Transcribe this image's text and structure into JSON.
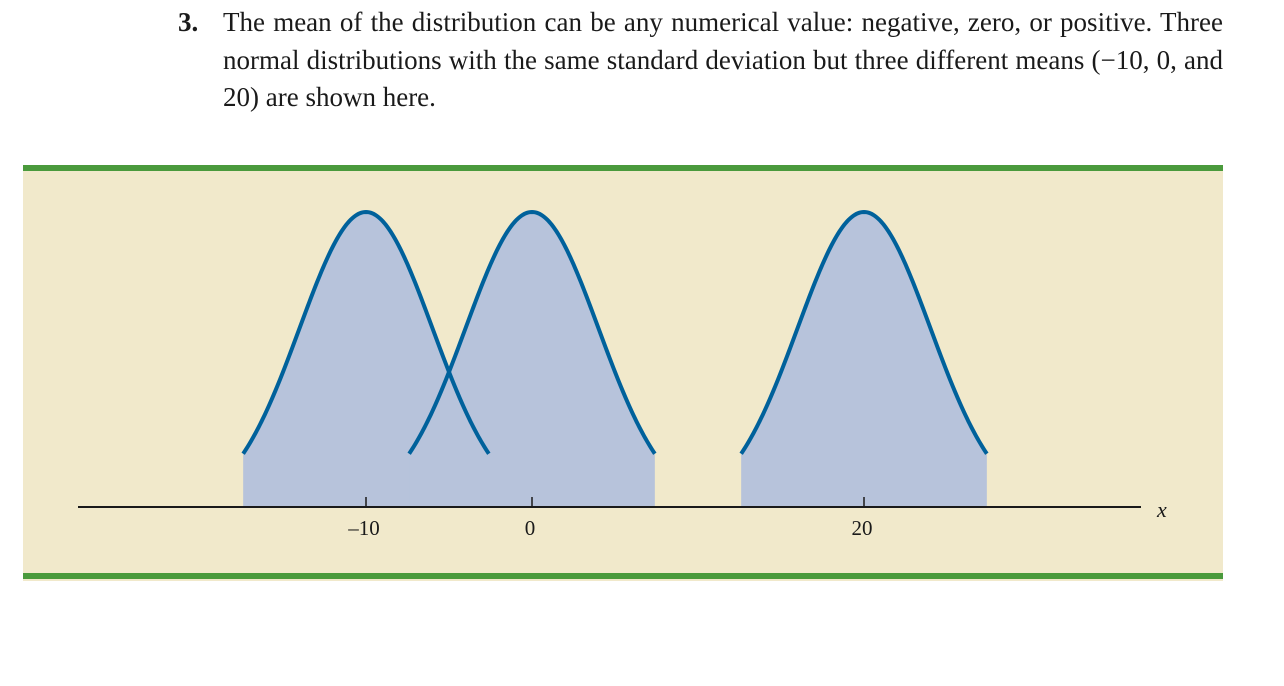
{
  "item": {
    "number": "3.",
    "text": "The mean of the distribution can be any numerical value: negative, zero, or positive. Three normal distributions with the same standard deviation but three different means (−10, 0, and 20) are shown here."
  },
  "colors": {
    "band_border": "#4a9a3c",
    "band_fill": "#f1e9cb",
    "curve_fill": "#b7c3db",
    "curve_stroke": "#00619b",
    "axis": "#1a1a1a"
  },
  "chart_data": {
    "type": "line",
    "title": "",
    "xlabel": "x",
    "ylabel": "",
    "grid": false,
    "xlim": [
      -19.5,
      33.5
    ],
    "x_ticks": [
      -10,
      0,
      20
    ],
    "x_tick_labels": [
      "–10",
      "0",
      "20"
    ],
    "common_std_dev": 4,
    "series": [
      {
        "mean": -10,
        "x_range": [
          -17.4,
          -2.6
        ]
      },
      {
        "mean": 0,
        "x_range": [
          -7.4,
          7.4
        ]
      },
      {
        "mean": 20,
        "x_range": [
          12.6,
          27.4
        ]
      }
    ]
  }
}
